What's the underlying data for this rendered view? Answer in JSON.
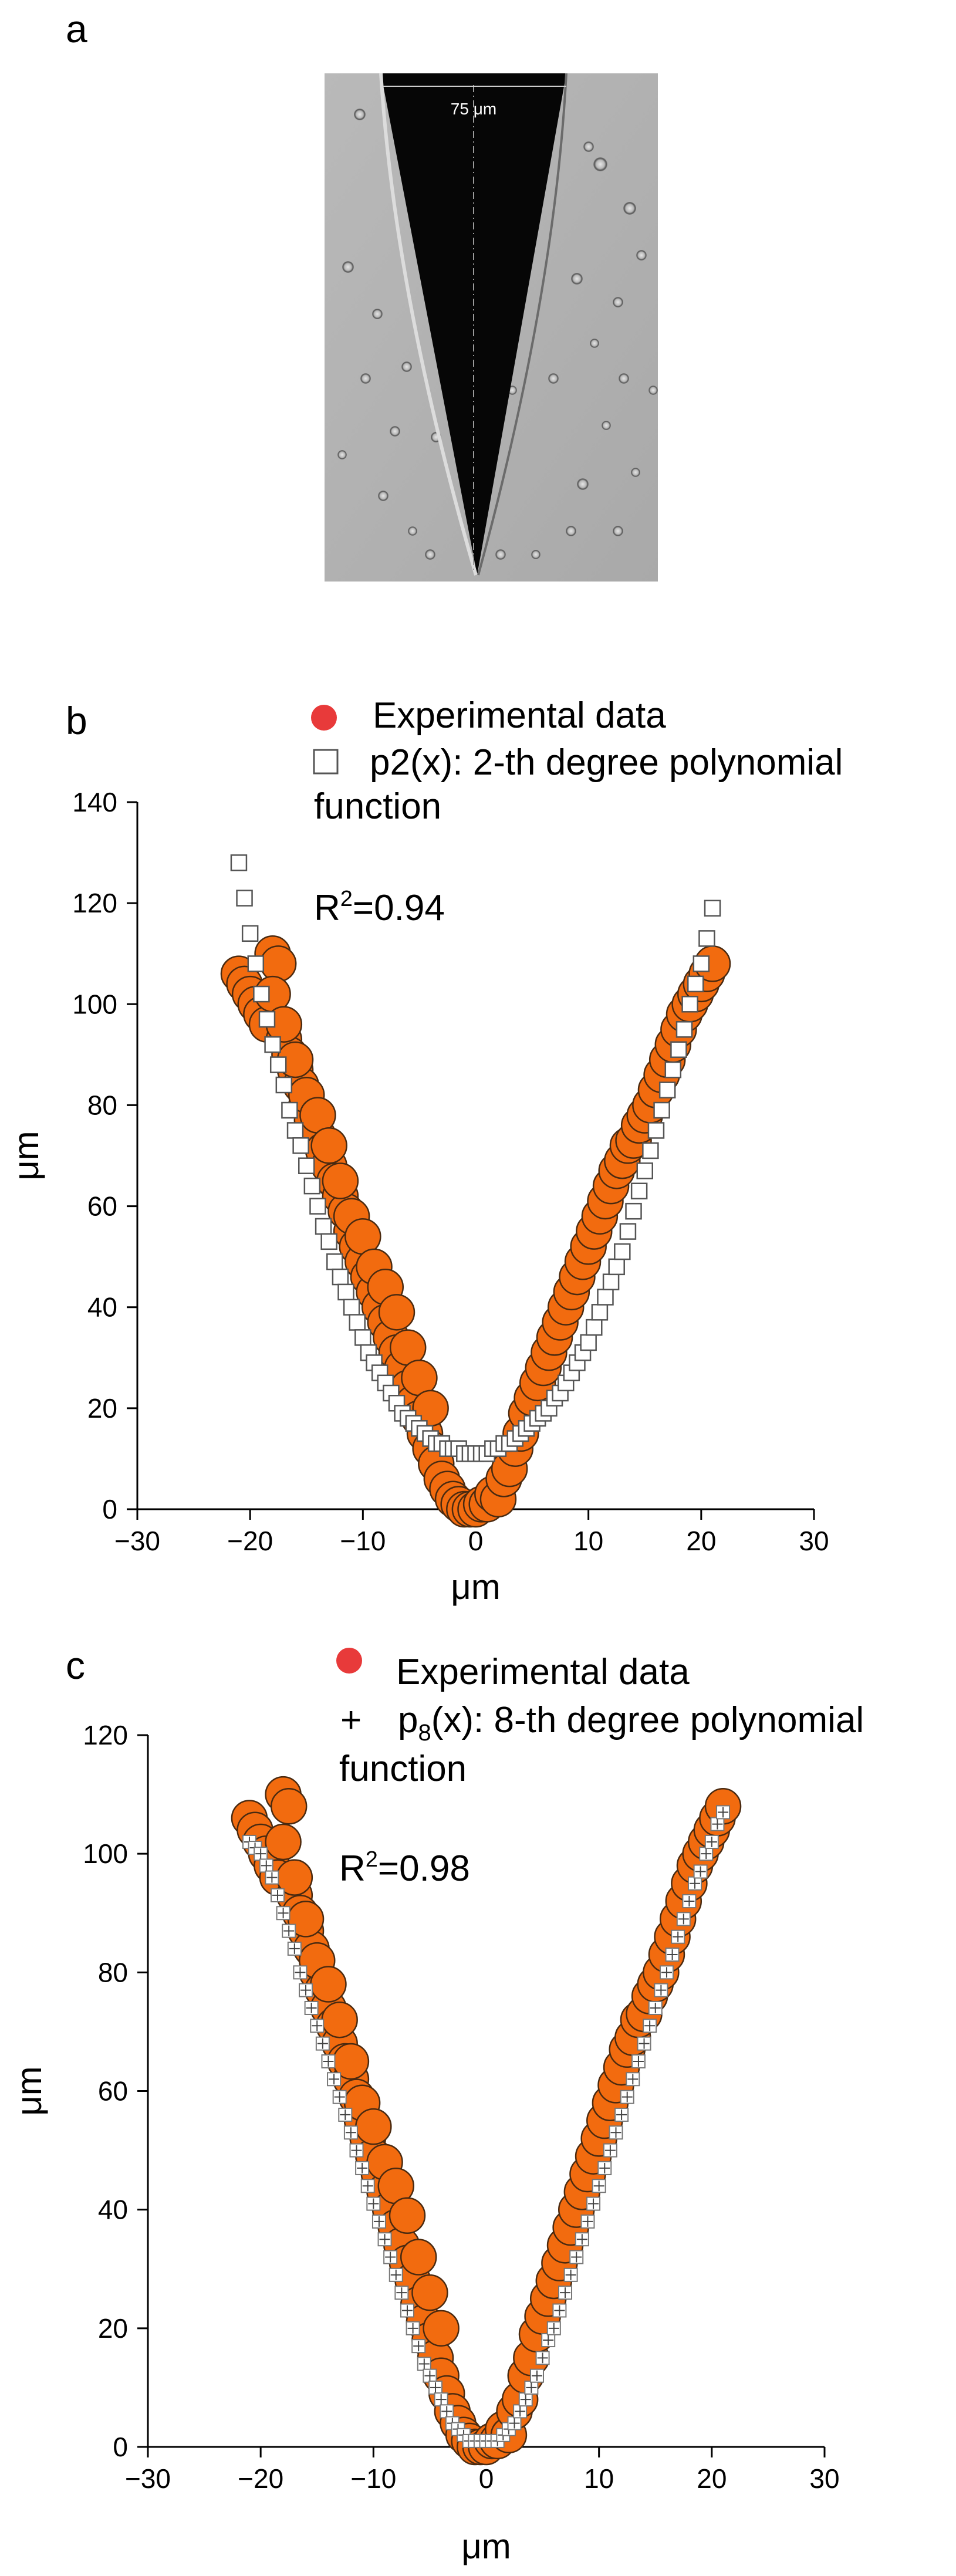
{
  "panels": {
    "a": {
      "label": "a",
      "scale_bar_label": "75 μm"
    },
    "b": {
      "label": "b"
    },
    "c": {
      "label": "c"
    }
  },
  "colors": {
    "experimental_fill": "#f26b0f",
    "experimental_edge": "#4a2a10",
    "legend_marker": "#e83a3a",
    "fit_marker": "#ffffff",
    "fit_edge": "#555555"
  },
  "icons": {
    "experimental_marker": "filled-circle-icon",
    "p2_marker": "open-square-icon",
    "p8_marker": "plus-square-icon"
  },
  "chart_data": [
    {
      "id": "b",
      "type": "scatter",
      "title": "",
      "xlabel": "μm",
      "ylabel": "μm",
      "xlim": [
        -30,
        30
      ],
      "ylim": [
        0,
        140
      ],
      "xticks": [
        -30,
        -20,
        -10,
        0,
        10,
        20,
        30
      ],
      "yticks": [
        0,
        20,
        40,
        60,
        80,
        100,
        120,
        140
      ],
      "legend": [
        {
          "label": "Experimental data",
          "marker": "filled-circle"
        },
        {
          "label": "p2(x): 2-th degree polynomial function",
          "marker": "open-square"
        }
      ],
      "annotation": "R²=0.94",
      "series": [
        {
          "name": "Experimental data",
          "marker": "circle",
          "x": [
            -21,
            -20.5,
            -20,
            -19.5,
            -19,
            -18.5,
            -18,
            -17.5,
            -17,
            -16.5,
            -16,
            -15.5,
            -15,
            -14.5,
            -14,
            -13.5,
            -13,
            -12.5,
            -12,
            -11.5,
            -11,
            -10.5,
            -10,
            -9.5,
            -9,
            -8.5,
            -8,
            -7.5,
            -7,
            -6.5,
            -6,
            -5.5,
            -5,
            -4.5,
            -4,
            -3.5,
            -3,
            -2.5,
            -2,
            -1.5,
            -1,
            -0.5,
            0,
            0.5,
            1,
            1.5,
            2,
            2.5,
            3,
            3.5,
            4,
            4.5,
            5,
            5.5,
            6,
            6.5,
            7,
            7.5,
            8,
            8.5,
            9,
            9.5,
            10,
            10.5,
            11,
            11.5,
            12,
            12.5,
            13,
            13.5,
            14,
            14.5,
            15,
            15.5,
            16,
            16.5,
            17,
            17.5,
            18,
            18.5,
            19,
            19.5,
            20,
            20.5,
            21,
            -18,
            -17,
            -16,
            -15,
            -14,
            -13,
            -12,
            -11,
            -10,
            -9,
            -8,
            -7,
            -6,
            -5,
            -4
          ],
          "y": [
            106,
            104,
            102,
            100,
            98,
            96,
            110,
            108,
            93,
            90,
            87,
            84,
            80,
            77,
            74,
            71,
            68,
            65,
            62,
            59,
            55,
            52,
            49,
            46,
            43,
            40,
            37,
            34,
            31,
            28,
            24,
            21,
            18,
            15,
            12,
            9,
            6,
            4,
            2,
            1,
            0,
            0,
            0,
            1,
            1,
            3,
            2,
            6,
            8,
            12,
            15,
            19,
            22,
            25,
            28,
            31,
            34,
            37,
            40,
            43,
            46,
            49,
            52,
            55,
            58,
            61,
            64,
            67,
            69,
            72,
            73,
            76,
            78,
            80,
            83,
            86,
            89,
            92,
            95,
            98,
            100,
            102,
            104,
            106,
            108,
            102,
            96,
            89,
            82,
            78,
            72,
            65,
            58,
            54,
            48,
            44,
            39,
            32,
            26,
            20
          ]
        },
        {
          "name": "p2(x): 2-th degree polynomial function",
          "marker": "square",
          "x": [
            -21,
            -20.5,
            -20,
            -19.5,
            -19,
            -18.5,
            -18,
            -17.5,
            -17,
            -16.5,
            -16,
            -15.5,
            -15,
            -14.5,
            -14,
            -13.5,
            -13,
            -12.5,
            -12,
            -11.5,
            -11,
            -10.5,
            -10,
            -9.5,
            -9,
            -8.5,
            -8,
            -7.5,
            -7,
            -6.5,
            -6,
            -5.5,
            -5,
            -4.5,
            -4,
            -3.5,
            -3,
            -2.5,
            -2,
            -1.5,
            -1,
            -0.5,
            0,
            0.5,
            1,
            1.5,
            2,
            2.5,
            3,
            3.5,
            4,
            4.5,
            5,
            5.5,
            6,
            6.5,
            7,
            7.5,
            8,
            8.5,
            9,
            9.5,
            10,
            10.5,
            11,
            11.5,
            12,
            12.5,
            13,
            13.5,
            14,
            14.5,
            15,
            15.5,
            16,
            16.5,
            17,
            17.5,
            18,
            18.5,
            19,
            19.5,
            20,
            20.5,
            21
          ],
          "y": [
            128,
            121,
            114,
            108,
            102,
            97,
            92,
            88,
            84,
            79,
            75,
            72,
            68,
            64,
            60,
            56,
            53,
            49,
            46,
            43,
            40,
            37,
            34,
            31,
            29,
            27,
            25,
            23,
            21,
            19,
            18,
            17,
            16,
            15,
            14,
            13,
            13,
            12,
            12,
            12,
            11,
            11,
            11,
            11,
            11,
            12,
            12,
            13,
            13,
            14,
            15,
            16,
            17,
            18,
            19,
            20,
            22,
            23,
            25,
            27,
            29,
            31,
            33,
            36,
            39,
            42,
            45,
            48,
            51,
            55,
            59,
            63,
            67,
            71,
            75,
            79,
            83,
            87,
            91,
            95,
            100,
            104,
            108,
            113,
            119
          ]
        }
      ]
    },
    {
      "id": "c",
      "type": "scatter",
      "title": "",
      "xlabel": "μm",
      "ylabel": "μm",
      "xlim": [
        -30,
        30
      ],
      "ylim": [
        0,
        120
      ],
      "xticks": [
        -30,
        -20,
        -10,
        0,
        10,
        20,
        30
      ],
      "yticks": [
        0,
        20,
        40,
        60,
        80,
        100,
        120
      ],
      "legend": [
        {
          "label": "Experimental data",
          "marker": "filled-circle"
        },
        {
          "label": "p₈(x): 8-th degree polynomial function",
          "marker": "plus"
        }
      ],
      "annotation": "R²=0.98",
      "series": [
        {
          "name": "Experimental data",
          "marker": "circle",
          "x": [
            -21,
            -20.5,
            -20,
            -19.5,
            -19,
            -18.5,
            -18,
            -17.5,
            -17,
            -16.5,
            -16,
            -15.5,
            -15,
            -14.5,
            -14,
            -13.5,
            -13,
            -12.5,
            -12,
            -11.5,
            -11,
            -10.5,
            -10,
            -9.5,
            -9,
            -8.5,
            -8,
            -7.5,
            -7,
            -6.5,
            -6,
            -5.5,
            -5,
            -4.5,
            -4,
            -3.5,
            -3,
            -2.5,
            -2,
            -1.5,
            -1,
            -0.5,
            0,
            0.5,
            1,
            1.5,
            2,
            2.5,
            3,
            3.5,
            4,
            4.5,
            5,
            5.5,
            6,
            6.5,
            7,
            7.5,
            8,
            8.5,
            9,
            9.5,
            10,
            10.5,
            11,
            11.5,
            12,
            12.5,
            13,
            13.5,
            14,
            14.5,
            15,
            15.5,
            16,
            16.5,
            17,
            17.5,
            18,
            18.5,
            19,
            19.5,
            20,
            20.5,
            21,
            -18,
            -17,
            -16,
            -15,
            -14,
            -13,
            -12,
            -11,
            -10,
            -9,
            -8,
            -7,
            -6,
            -5,
            -4
          ],
          "y": [
            106,
            104,
            102,
            100,
            98,
            96,
            110,
            108,
            93,
            90,
            87,
            84,
            80,
            77,
            74,
            71,
            68,
            65,
            62,
            59,
            55,
            52,
            49,
            46,
            43,
            40,
            37,
            34,
            31,
            28,
            24,
            21,
            18,
            15,
            12,
            9,
            6,
            4,
            2,
            1,
            0,
            0,
            0,
            1,
            1,
            3,
            2,
            6,
            8,
            12,
            15,
            19,
            22,
            25,
            28,
            31,
            34,
            37,
            40,
            43,
            46,
            49,
            52,
            55,
            58,
            61,
            64,
            67,
            69,
            72,
            73,
            76,
            78,
            80,
            83,
            86,
            89,
            92,
            95,
            98,
            100,
            102,
            104,
            106,
            108,
            102,
            96,
            89,
            82,
            78,
            72,
            65,
            58,
            54,
            48,
            44,
            39,
            32,
            26,
            20
          ]
        },
        {
          "name": "p₈(x): 8-th degree polynomial function",
          "marker": "plus",
          "x": [
            -21,
            -20.5,
            -20,
            -19.5,
            -19,
            -18.5,
            -18,
            -17.5,
            -17,
            -16.5,
            -16,
            -15.5,
            -15,
            -14.5,
            -14,
            -13.5,
            -13,
            -12.5,
            -12,
            -11.5,
            -11,
            -10.5,
            -10,
            -9.5,
            -9,
            -8.5,
            -8,
            -7.5,
            -7,
            -6.5,
            -6,
            -5.5,
            -5,
            -4.5,
            -4,
            -3.5,
            -3,
            -2.5,
            -2,
            -1.5,
            -1,
            -0.5,
            0,
            0.5,
            1,
            1.5,
            2,
            2.5,
            3,
            3.5,
            4,
            4.5,
            5,
            5.5,
            6,
            6.5,
            7,
            7.5,
            8,
            8.5,
            9,
            9.5,
            10,
            10.5,
            11,
            11.5,
            12,
            12.5,
            13,
            13.5,
            14,
            14.5,
            15,
            15.5,
            16,
            16.5,
            17,
            17.5,
            18,
            18.5,
            19,
            19.5,
            20,
            20.5,
            21
          ],
          "y": [
            102,
            101,
            100,
            98,
            96,
            93,
            90,
            87,
            84,
            80,
            77,
            74,
            71,
            68,
            65,
            62,
            59,
            56,
            53,
            50,
            47,
            44,
            41,
            38,
            35,
            32,
            29,
            26,
            23,
            20,
            17,
            14,
            12,
            10,
            8,
            6,
            4,
            3,
            2,
            1,
            1,
            1,
            1,
            1,
            1,
            2,
            3,
            4,
            6,
            8,
            10,
            12,
            15,
            18,
            20,
            23,
            26,
            29,
            32,
            35,
            38,
            41,
            44,
            47,
            50,
            53,
            56,
            59,
            62,
            65,
            68,
            71,
            74,
            77,
            80,
            83,
            86,
            89,
            92,
            95,
            97,
            100,
            102,
            105,
            107
          ]
        }
      ]
    }
  ]
}
